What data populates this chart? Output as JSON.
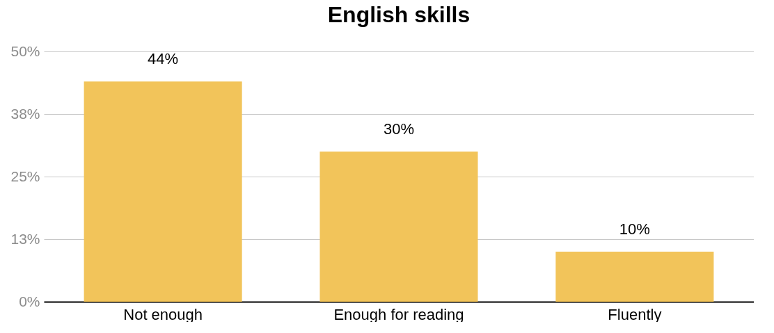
{
  "chart_data": {
    "type": "bar",
    "title": "English skills",
    "categories": [
      "Not enough",
      "Enough for reading",
      "Fluently"
    ],
    "values": [
      44,
      30,
      10
    ],
    "color": "#f2c45a",
    "value_labels": [
      "44%",
      "30%",
      "10%"
    ],
    "ylim": [
      0,
      50
    ],
    "yticks": [
      {
        "value": 0,
        "label": "0%"
      },
      {
        "value": 12.5,
        "label": "13%"
      },
      {
        "value": 25,
        "label": "25%"
      },
      {
        "value": 37.5,
        "label": "38%"
      },
      {
        "value": 50,
        "label": "50%"
      }
    ],
    "grid": true
  }
}
